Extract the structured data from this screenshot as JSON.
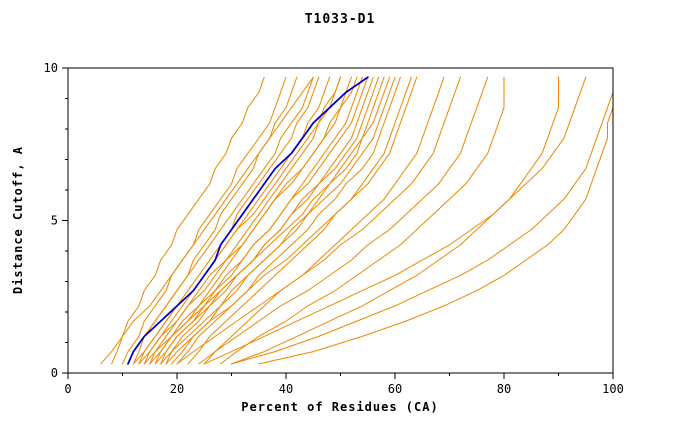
{
  "figure": {
    "background": "#ffffff",
    "frame_color": "#000000",
    "text_color": "#000000"
  },
  "chart_data": {
    "type": "line",
    "title": "T1033-D1",
    "xlabel": "Percent of Residues (CA)",
    "ylabel": "Distance Cutoff, A",
    "xlim": [
      0,
      100
    ],
    "ylim": [
      0,
      10
    ],
    "x_ticks": [
      0,
      20,
      40,
      60,
      80,
      100
    ],
    "y_ticks": [
      0,
      5,
      10
    ],
    "x_minor_step": 10,
    "y_minor_step": 1,
    "grid": false,
    "legend": "none",
    "colors": {
      "model_line": "#ee8800",
      "highlight_line": "#0000cc"
    },
    "y_grid_values": [
      0.3,
      0.7,
      1.2,
      1.7,
      2.2,
      2.7,
      3.2,
      3.7,
      4.2,
      4.7,
      5.2,
      5.7,
      6.2,
      6.7,
      7.2,
      7.7,
      8.2,
      8.7,
      9.2,
      9.7
    ],
    "series": [
      {
        "id": "s01",
        "color": "#ee8800",
        "width": 1,
        "x": [
          8,
          9,
          10,
          11,
          13,
          14,
          16,
          17,
          19,
          20,
          22,
          24,
          26,
          27,
          29,
          30,
          32,
          33,
          35,
          36
        ]
      },
      {
        "id": "s02",
        "color": "#ee8800",
        "width": 1,
        "x": [
          10,
          11,
          13,
          14,
          16,
          18,
          19,
          21,
          23,
          24,
          26,
          28,
          30,
          31,
          33,
          35,
          37,
          38,
          39,
          40
        ]
      },
      {
        "id": "s03",
        "color": "#ee8800",
        "width": 1,
        "x": [
          12,
          13,
          14,
          16,
          18,
          20,
          22,
          23,
          25,
          27,
          28,
          30,
          32,
          34,
          35,
          37,
          38,
          40,
          41,
          42
        ]
      },
      {
        "id": "s04",
        "color": "#ee8800",
        "width": 1,
        "x": [
          11,
          12,
          14,
          16,
          18,
          20,
          22,
          24,
          26,
          28,
          30,
          32,
          34,
          36,
          38,
          39,
          41,
          43,
          44,
          45
        ]
      },
      {
        "id": "s05",
        "color": "#ee8800",
        "width": 1,
        "x": [
          13,
          14,
          16,
          18,
          20,
          22,
          24,
          26,
          28,
          30,
          31,
          33,
          35,
          37,
          39,
          41,
          42,
          44,
          45,
          46
        ]
      },
      {
        "id": "s06",
        "color": "#ee8800",
        "width": 1,
        "x": [
          14,
          15,
          17,
          19,
          21,
          23,
          25,
          27,
          29,
          31,
          33,
          35,
          37,
          39,
          41,
          43,
          44,
          46,
          47,
          48
        ]
      },
      {
        "id": "s07",
        "color": "#ee8800",
        "width": 1,
        "x": [
          12,
          14,
          16,
          18,
          20,
          23,
          25,
          27,
          29,
          31,
          34,
          36,
          38,
          40,
          42,
          44,
          46,
          47,
          49,
          50
        ]
      },
      {
        "id": "s08",
        "color": "#ee8800",
        "width": 1,
        "x": [
          15,
          16,
          18,
          20,
          22,
          24,
          26,
          29,
          31,
          33,
          35,
          37,
          39,
          41,
          43,
          45,
          46,
          48,
          49,
          50
        ]
      },
      {
        "id": "s09",
        "color": "#ee8800",
        "width": 1,
        "x": [
          16,
          17,
          19,
          21,
          24,
          26,
          28,
          30,
          32,
          34,
          36,
          38,
          40,
          43,
          45,
          47,
          48,
          50,
          51,
          52
        ]
      },
      {
        "id": "s10",
        "color": "#ee8800",
        "width": 1,
        "x": [
          13,
          15,
          17,
          20,
          22,
          25,
          27,
          29,
          32,
          34,
          36,
          38,
          41,
          43,
          45,
          47,
          49,
          50,
          52,
          53
        ]
      },
      {
        "id": "s11",
        "color": "#ee8800",
        "width": 1,
        "x": [
          17,
          18,
          20,
          23,
          25,
          27,
          30,
          32,
          34,
          37,
          39,
          41,
          43,
          45,
          47,
          49,
          51,
          52,
          53,
          54
        ]
      },
      {
        "id": "s12",
        "color": "#ee8800",
        "width": 1,
        "x": [
          15,
          17,
          19,
          22,
          24,
          27,
          29,
          32,
          34,
          37,
          39,
          41,
          44,
          46,
          48,
          50,
          52,
          53,
          54,
          55
        ]
      },
      {
        "id": "s13",
        "color": "#ee8800",
        "width": 1,
        "x": [
          18,
          19,
          21,
          24,
          26,
          29,
          31,
          34,
          36,
          39,
          41,
          43,
          46,
          48,
          50,
          52,
          53,
          54,
          55,
          56
        ]
      },
      {
        "id": "s14",
        "color": "#ee8800",
        "width": 1,
        "x": [
          16,
          18,
          20,
          23,
          26,
          28,
          31,
          34,
          36,
          39,
          41,
          44,
          46,
          49,
          51,
          53,
          54,
          55,
          56,
          57
        ]
      },
      {
        "id": "s15",
        "color": "#ee8800",
        "width": 1,
        "x": [
          19,
          21,
          23,
          26,
          28,
          31,
          33,
          36,
          39,
          41,
          44,
          46,
          48,
          51,
          53,
          54,
          56,
          57,
          58,
          59
        ]
      },
      {
        "id": "s16",
        "color": "#ee8800",
        "width": 1,
        "x": [
          17,
          19,
          22,
          25,
          28,
          30,
          33,
          36,
          39,
          42,
          44,
          47,
          50,
          52,
          54,
          56,
          57,
          58,
          59,
          60
        ]
      },
      {
        "id": "s17",
        "color": "#ee8800",
        "width": 1,
        "x": [
          20,
          22,
          24,
          27,
          30,
          33,
          35,
          38,
          41,
          44,
          46,
          49,
          51,
          54,
          56,
          57,
          58,
          59,
          60,
          61
        ]
      },
      {
        "id": "s18",
        "color": "#ee8800",
        "width": 1,
        "x": [
          14,
          16,
          19,
          22,
          25,
          28,
          31,
          34,
          37,
          40,
          43,
          45,
          48,
          50,
          52,
          54,
          55,
          56,
          57,
          58
        ]
      },
      {
        "id": "s19",
        "color": "#ee8800",
        "width": 1,
        "x": [
          22,
          24,
          26,
          29,
          32,
          35,
          38,
          41,
          44,
          47,
          49,
          52,
          54,
          56,
          58,
          59,
          60,
          61,
          62,
          63
        ]
      },
      {
        "id": "s20",
        "color": "#ee8800",
        "width": 1,
        "x": [
          18,
          20,
          23,
          26,
          30,
          33,
          36,
          40,
          43,
          46,
          49,
          52,
          55,
          57,
          59,
          60,
          61,
          62,
          63,
          64
        ]
      },
      {
        "id": "s21",
        "color": "#ee8800",
        "width": 1,
        "x": [
          25,
          27,
          30,
          33,
          36,
          39,
          43,
          46,
          49,
          52,
          55,
          58,
          60,
          62,
          64,
          65,
          66,
          67,
          68,
          69
        ]
      },
      {
        "id": "s22",
        "color": "#ee8800",
        "width": 1,
        "x": [
          20,
          23,
          27,
          31,
          35,
          39,
          43,
          47,
          50,
          54,
          57,
          60,
          63,
          65,
          67,
          68,
          69,
          70,
          71,
          72
        ]
      },
      {
        "id": "s23",
        "color": "#ee8800",
        "width": 1,
        "x": [
          24,
          27,
          31,
          35,
          39,
          44,
          48,
          52,
          55,
          59,
          62,
          65,
          68,
          70,
          72,
          73,
          74,
          75,
          76,
          77
        ]
      },
      {
        "id": "s24",
        "color": "#ee8800",
        "width": 1,
        "x": [
          28,
          31,
          35,
          40,
          44,
          49,
          53,
          57,
          61,
          64,
          67,
          70,
          73,
          75,
          77,
          78,
          79,
          80,
          80,
          80
        ]
      },
      {
        "id": "s25",
        "color": "#ee8800",
        "width": 1,
        "x": [
          30,
          36,
          42,
          48,
          54,
          59,
          64,
          68,
          72,
          75,
          78,
          81,
          83,
          85,
          87,
          88,
          89,
          90,
          90,
          90
        ]
      },
      {
        "id": "s26",
        "color": "#ee8800",
        "width": 1,
        "x": [
          35,
          45,
          54,
          62,
          69,
          75,
          80,
          84,
          88,
          91,
          93,
          95,
          96,
          97,
          98,
          99,
          99,
          100,
          100,
          100
        ]
      },
      {
        "id": "s27",
        "color": "#ee8800",
        "width": 1,
        "x": [
          30,
          38,
          46,
          53,
          60,
          66,
          72,
          77,
          81,
          85,
          88,
          91,
          93,
          95,
          96,
          97,
          98,
          99,
          100,
          100
        ]
      },
      {
        "id": "s28",
        "color": "#ee8800",
        "width": 1,
        "x": [
          25,
          30,
          36,
          42,
          48,
          54,
          60,
          65,
          70,
          74,
          78,
          81,
          84,
          87,
          89,
          91,
          92,
          93,
          94,
          95
        ]
      },
      {
        "id": "s29",
        "color": "#ee8800",
        "width": 1,
        "x": [
          6,
          8,
          10,
          12,
          15,
          17,
          19,
          21,
          23,
          25,
          27,
          29,
          31,
          33,
          35,
          37,
          39,
          41,
          43,
          45
        ]
      },
      {
        "id": "highlight",
        "color": "#0000cc",
        "width": 1.8,
        "x": [
          11,
          12,
          14,
          17,
          20,
          23,
          25,
          27,
          28,
          30,
          32,
          34,
          36,
          38,
          41,
          43,
          45,
          48,
          51,
          55
        ]
      }
    ]
  }
}
